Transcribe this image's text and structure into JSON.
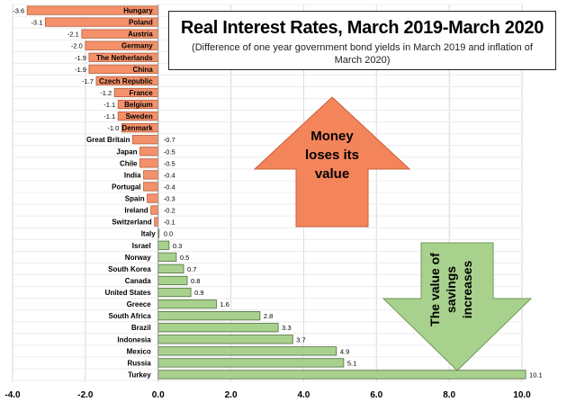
{
  "chart_data": {
    "type": "bar",
    "orientation": "horizontal",
    "title": "Real Interest Rates, March 2019-March 2020",
    "subtitle": "(Difference of one year government bond yields in March 2019 and inflation of March 2020)",
    "categories": [
      "Hungary",
      "Poland",
      "Austria",
      "Germany",
      "The Netherlands",
      "China",
      "Czech Republic",
      "France",
      "Belgium",
      "Sweden",
      "Denmark",
      "Great Britain",
      "Japan",
      "Chile",
      "India",
      "Portugal",
      "Spain",
      "Ireland",
      "Switzerland",
      "Italy",
      "Israel",
      "Norway",
      "South Korea",
      "Canada",
      "United States",
      "Greece",
      "South Africa",
      "Brazil",
      "Indonesia",
      "Mexico",
      "Russia",
      "Turkey"
    ],
    "values": [
      -3.6,
      -3.1,
      -2.1,
      -2.0,
      -1.9,
      -1.9,
      -1.7,
      -1.2,
      -1.1,
      -1.1,
      -1.0,
      -0.7,
      -0.5,
      -0.5,
      -0.4,
      -0.4,
      -0.3,
      -0.2,
      -0.1,
      0.0,
      0.3,
      0.5,
      0.7,
      0.8,
      0.9,
      1.6,
      2.8,
      3.3,
      3.7,
      4.9,
      5.1,
      10.1
    ],
    "value_labels": [
      "-3.6",
      "-3.1",
      "-2.1",
      "-2.0",
      "-1.9",
      "-1.9",
      "-1.7",
      "-1.2",
      "-1.1",
      "-1.1",
      "-1.0",
      "-0.7",
      "-0.5",
      "-0.5",
      "-0.4",
      "-0.4",
      "-0.3",
      "-0.2",
      "-0.1",
      "0.0",
      "0.3",
      "0.5",
      "0.7",
      "0.8",
      "0.9",
      "1.6",
      "2.8",
      "3.3",
      "3.7",
      "4.9",
      "5.1",
      "10.1"
    ],
    "xlim": [
      -4.0,
      10.0
    ],
    "xticks": [
      "-4.0",
      "-2.0",
      "0.0",
      "2.0",
      "4.0",
      "6.0",
      "8.0",
      "10.0"
    ],
    "grid": true,
    "negative_color": "#f4916b",
    "positive_color": "#a9d18e",
    "annotations": {
      "up_arrow_text": "Money loses its value",
      "up_arrow_color": "#f4845a",
      "down_arrow_text": "The value of savings increases",
      "down_arrow_color": "#a9d18e"
    }
  }
}
